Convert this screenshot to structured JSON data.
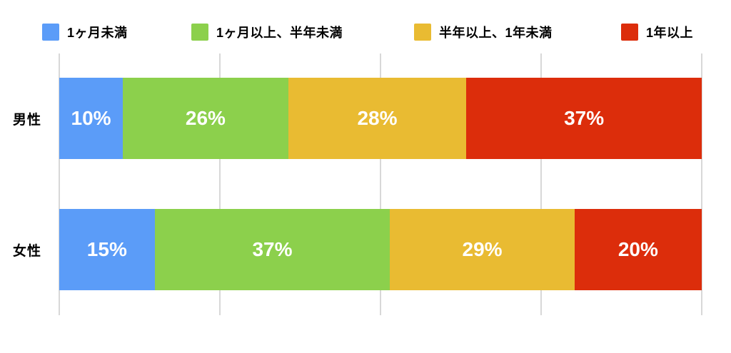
{
  "chart_data": {
    "type": "bar",
    "orientation": "horizontal",
    "stacked": true,
    "title": "",
    "categories": [
      "男性",
      "女性"
    ],
    "series": [
      {
        "name": "1ヶ月未満",
        "color": "#5B9CF8",
        "values": [
          10,
          15
        ]
      },
      {
        "name": "1ヶ月以上、半年未満",
        "color": "#8CD04C",
        "values": [
          26,
          37
        ]
      },
      {
        "name": "半年以上、1年未満",
        "color": "#E9BB32",
        "values": [
          28,
          29
        ]
      },
      {
        "name": "1年以上",
        "color": "#DC2D0B",
        "values": [
          37,
          20
        ]
      }
    ],
    "value_labels": [
      [
        "10%",
        "26%",
        "28%",
        "37%"
      ],
      [
        "15%",
        "37%",
        "29%",
        "20%"
      ]
    ],
    "row_totals": [
      101,
      101
    ],
    "xlim": [
      0,
      101
    ],
    "gridline_count": 5,
    "grid_on": true,
    "legend_position": "top",
    "colors": {
      "grid": "#D8D8D8",
      "background": "#FFFFFF",
      "category_text": "#000000",
      "value_text": "#FFFFFF"
    }
  }
}
